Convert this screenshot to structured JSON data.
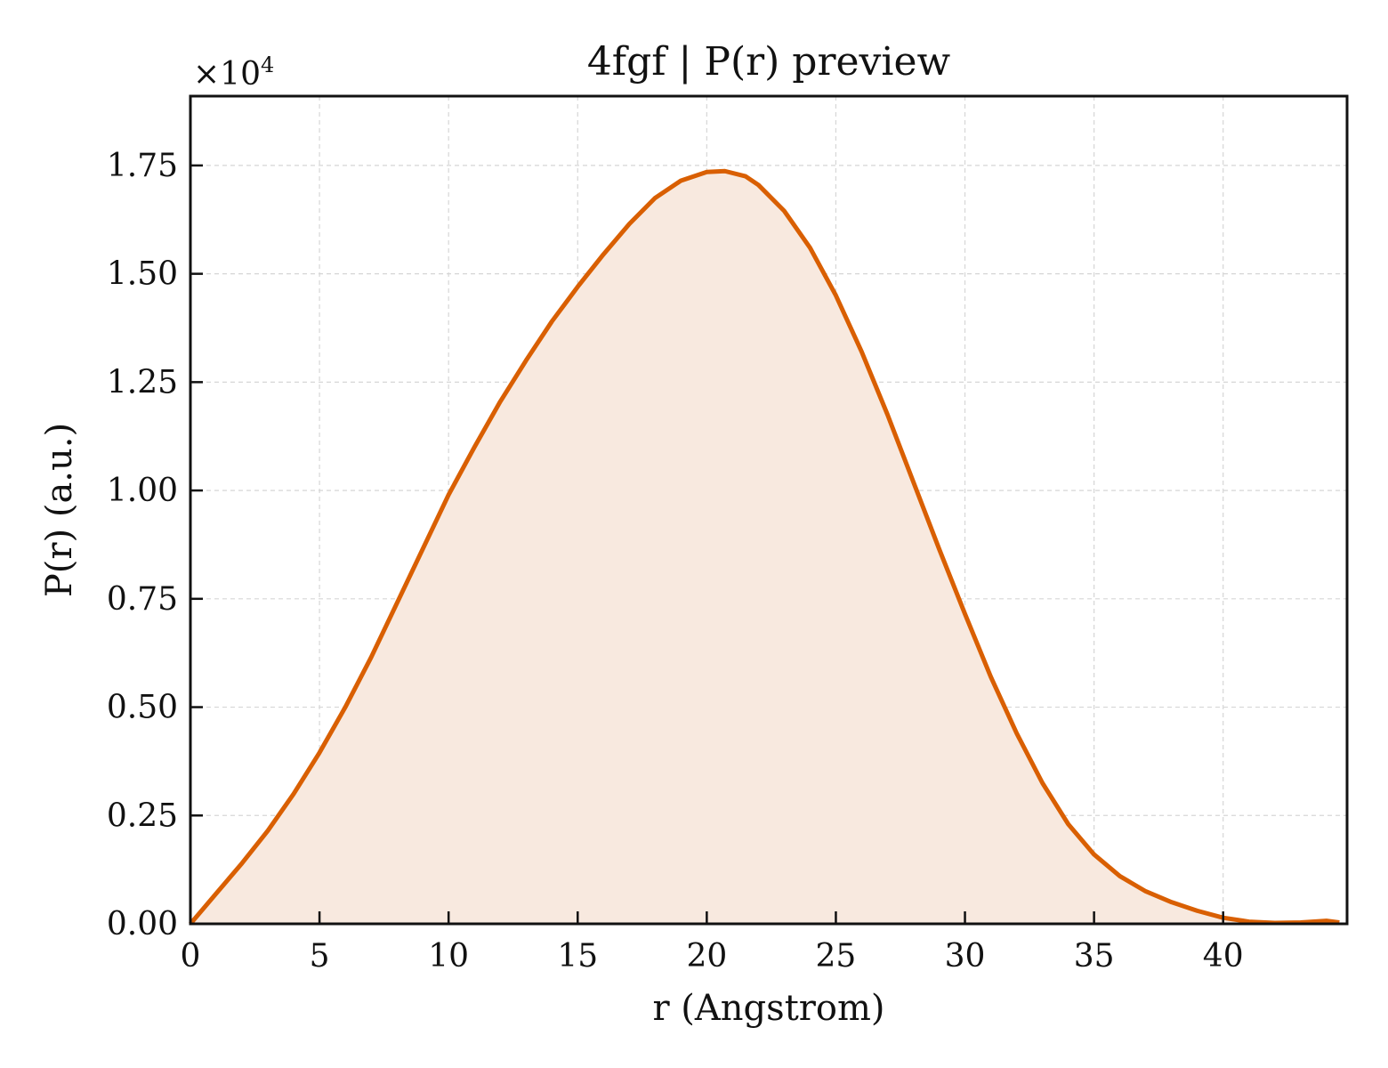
{
  "chart_data": {
    "type": "area",
    "title": "4fgf | P(r) preview",
    "xlabel": "r (Angstrom)",
    "ylabel": "P(r) (a.u.)",
    "y_multiplier": "×10",
    "y_multiplier_exp": "4",
    "xlim": [
      0,
      44.8
    ],
    "ylim": [
      0,
      1.91
    ],
    "xticks": [
      0,
      5,
      10,
      15,
      20,
      25,
      30,
      35,
      40
    ],
    "xtick_labels": [
      "0",
      "5",
      "10",
      "15",
      "20",
      "25",
      "30",
      "35",
      "40"
    ],
    "yticks": [
      0,
      0.25,
      0.5,
      0.75,
      1.0,
      1.25,
      1.5,
      1.75
    ],
    "ytick_labels": [
      "0.00",
      "0.25",
      "0.50",
      "0.75",
      "1.00",
      "1.25",
      "1.50",
      "1.75"
    ],
    "grid": true,
    "colors": {
      "line": "#d95f02",
      "fill": "#f8e9df",
      "grid": "#d6d6d6",
      "axes": "#111111"
    },
    "series": [
      {
        "x": [
          0,
          1,
          2,
          3,
          4,
          5,
          6,
          7,
          8,
          9,
          10,
          11,
          12,
          13,
          14,
          15,
          16,
          17,
          18,
          19,
          20,
          20.7,
          21.5,
          22,
          23,
          24,
          25,
          26,
          27,
          28,
          29,
          30,
          31,
          32,
          33,
          34,
          35,
          36,
          37,
          38,
          39,
          40,
          41,
          42,
          43,
          44,
          44.5
        ],
        "values": [
          0.0,
          0.07,
          0.14,
          0.215,
          0.3,
          0.395,
          0.5,
          0.615,
          0.74,
          0.865,
          0.99,
          1.1,
          1.205,
          1.3,
          1.39,
          1.47,
          1.545,
          1.615,
          1.675,
          1.715,
          1.735,
          1.737,
          1.725,
          1.705,
          1.645,
          1.56,
          1.45,
          1.32,
          1.175,
          1.02,
          0.865,
          0.715,
          0.57,
          0.44,
          0.325,
          0.23,
          0.16,
          0.11,
          0.075,
          0.05,
          0.03,
          0.014,
          0.005,
          0.002,
          0.003,
          0.007,
          0.003
        ]
      }
    ]
  }
}
